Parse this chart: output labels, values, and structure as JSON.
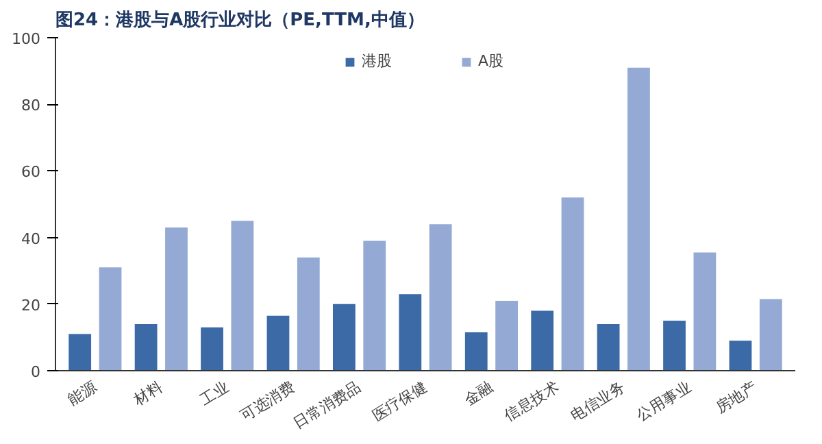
{
  "chart_data": {
    "type": "bar",
    "title": "图24：港股与A股行业对比（PE,TTM,中值）",
    "categories": [
      "能源",
      "材料",
      "工业",
      "可选消费",
      "日常消费品",
      "医疗保健",
      "金融",
      "信息技术",
      "电信业务",
      "公用事业",
      "房地产"
    ],
    "series": [
      {
        "name": "港股",
        "color": "#3c6aa6",
        "values": [
          11,
          14,
          13,
          16.5,
          20,
          23,
          11.5,
          18,
          14,
          15,
          9
        ]
      },
      {
        "name": "A股",
        "color": "#94a9d3",
        "values": [
          31,
          43,
          45,
          34,
          39,
          44,
          21,
          52,
          91,
          35.5,
          21.5
        ]
      }
    ],
    "ylim": [
      0,
      100
    ],
    "yticks": [
      0,
      20,
      40,
      60,
      80,
      100
    ],
    "grid": false,
    "legend": "top"
  }
}
